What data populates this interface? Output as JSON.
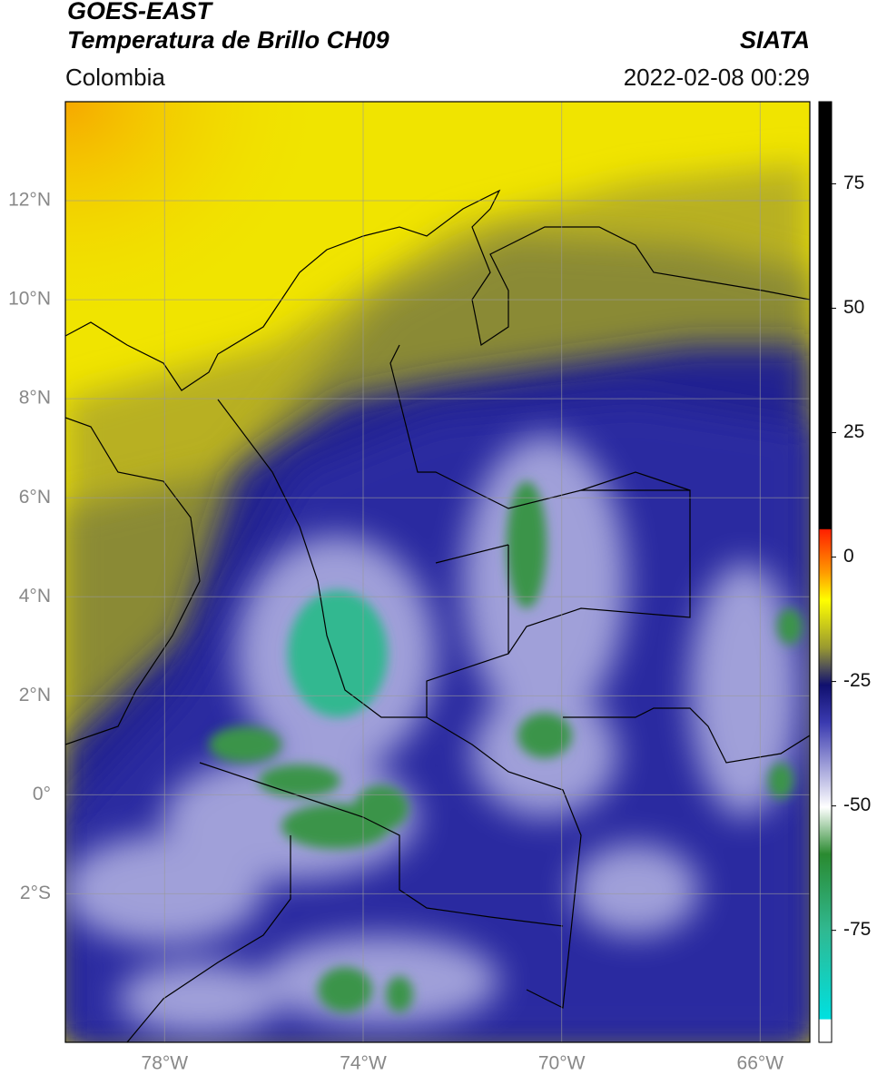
{
  "header": {
    "title": "GOES-EAST",
    "subtitle": "Temperatura de Brillo CH09",
    "source": "SIATA",
    "region": "Colombia",
    "datetime": "2022-02-08 00:29"
  },
  "map": {
    "xlim": [
      -80,
      -65
    ],
    "ylim": [
      -5,
      14
    ],
    "xticks": [
      {
        "value": -78,
        "label": "78°W"
      },
      {
        "value": -74,
        "label": "74°W"
      },
      {
        "value": -70,
        "label": "70°W"
      },
      {
        "value": -66,
        "label": "66°W"
      }
    ],
    "yticks": [
      {
        "value": 12,
        "label": "12°N"
      },
      {
        "value": 10,
        "label": "10°N"
      },
      {
        "value": 8,
        "label": "8°N"
      },
      {
        "value": 6,
        "label": "6°N"
      },
      {
        "value": 4,
        "label": "4°N"
      },
      {
        "value": 2,
        "label": "2°N"
      },
      {
        "value": 0,
        "label": "0°"
      },
      {
        "value": -2,
        "label": "2°S"
      }
    ],
    "grid": true
  },
  "colorbar": {
    "lim": [
      -97.5,
      91.5
    ],
    "ticks": [
      75,
      50,
      25,
      0,
      -25,
      -50,
      -75
    ]
  }
}
